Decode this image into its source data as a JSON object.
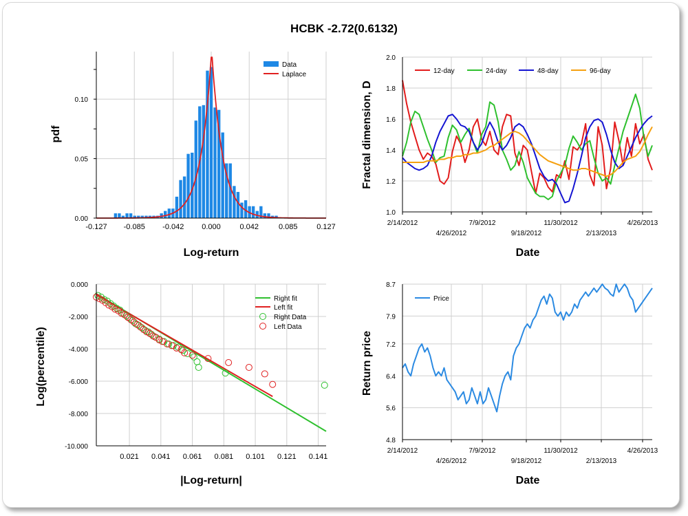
{
  "title": "HCBK -2.72(0.6132)",
  "colors": {
    "bar": "#1e88e5",
    "laplace": "#e02020",
    "d12": "#e21b1b",
    "d24": "#2ec02e",
    "d48": "#1414d2",
    "d96": "#f5a00f",
    "price": "#2b8ae2",
    "grid": "#cfcfcf",
    "rightfit": "#2ec02e",
    "leftfit": "#e02020"
  },
  "chart_data": [
    {
      "id": "hist",
      "type": "bar",
      "xlabel": "Log-return",
      "ylabel": "pdf",
      "xlim": [
        -0.127,
        0.127
      ],
      "ylim": [
        0,
        0.14
      ],
      "xticks": [
        "-0.127",
        "-0.085",
        "-0.042",
        "0.000",
        "0.042",
        "0.085",
        "0.127"
      ],
      "yticks": [
        "0.00",
        "0.05",
        "0.10"
      ],
      "legend": [
        "Data",
        "Laplace"
      ],
      "bin_width": 0.00424,
      "bins": [
        [
          -0.1058,
          0.004
        ],
        [
          -0.1016,
          0.004
        ],
        [
          -0.0974,
          0.002
        ],
        [
          -0.0931,
          0.004
        ],
        [
          -0.0889,
          0.004
        ],
        [
          -0.0846,
          0.002
        ],
        [
          -0.0804,
          0.002
        ],
        [
          -0.0762,
          0.002
        ],
        [
          -0.0719,
          0.002
        ],
        [
          -0.0677,
          0.002
        ],
        [
          -0.0635,
          0.002
        ],
        [
          -0.0592,
          0.002
        ],
        [
          -0.055,
          0.004
        ],
        [
          -0.0508,
          0.006
        ],
        [
          -0.0465,
          0.008
        ],
        [
          -0.0423,
          0.008
        ],
        [
          -0.0381,
          0.018
        ],
        [
          -0.0338,
          0.032
        ],
        [
          -0.0296,
          0.035
        ],
        [
          -0.0254,
          0.054
        ],
        [
          -0.0211,
          0.055
        ],
        [
          -0.0169,
          0.082
        ],
        [
          -0.0127,
          0.094
        ],
        [
          -0.0085,
          0.095
        ],
        [
          -0.0042,
          0.124
        ],
        [
          0.0,
          0.127
        ],
        [
          0.0042,
          0.093
        ],
        [
          0.0085,
          0.091
        ],
        [
          0.0127,
          0.072
        ],
        [
          0.0169,
          0.046
        ],
        [
          0.0211,
          0.046
        ],
        [
          0.0254,
          0.027
        ],
        [
          0.0296,
          0.022
        ],
        [
          0.0338,
          0.013
        ],
        [
          0.0381,
          0.015
        ],
        [
          0.0423,
          0.01
        ],
        [
          0.0465,
          0.01
        ],
        [
          0.0508,
          0.006
        ],
        [
          0.055,
          0.01
        ],
        [
          0.0592,
          0.004
        ],
        [
          0.0635,
          0.004
        ],
        [
          0.0677,
          0.002
        ],
        [
          0.0719,
          0.002
        ]
      ],
      "laplace": {
        "mu": 0.0005,
        "b": 0.0122,
        "peak": 0.141
      }
    },
    {
      "id": "fractal",
      "type": "line",
      "xlabel": "Date",
      "ylabel": "Fractal dimension, D",
      "ylim": [
        1.0,
        2.0
      ],
      "yticks": [
        "1.0",
        "1.2",
        "1.4",
        "1.6",
        "1.8",
        "2.0"
      ],
      "xticks_top": [
        "2/14/2012",
        "7/9/2012",
        "11/30/2012",
        "4/26/2013"
      ],
      "xticks_bottom": [
        "4/26/2012",
        "9/18/2012",
        "2/13/2013"
      ],
      "series": [
        {
          "name": "12-day",
          "values": [
            1.85,
            1.7,
            1.58,
            1.49,
            1.4,
            1.34,
            1.38,
            1.36,
            1.31,
            1.2,
            1.18,
            1.22,
            1.39,
            1.49,
            1.44,
            1.32,
            1.4,
            1.55,
            1.6,
            1.47,
            1.43,
            1.52,
            1.4,
            1.37,
            1.55,
            1.63,
            1.62,
            1.38,
            1.3,
            1.43,
            1.4,
            1.26,
            1.12,
            1.25,
            1.22,
            1.16,
            1.13,
            1.24,
            1.22,
            1.33,
            1.21,
            1.42,
            1.4,
            1.44,
            1.57,
            1.24,
            1.17,
            1.55,
            1.43,
            1.15,
            1.28,
            1.58,
            1.46,
            1.3,
            1.48,
            1.36,
            1.57,
            1.44,
            1.5,
            1.34,
            1.27
          ]
        },
        {
          "name": "24-day",
          "values": [
            1.36,
            1.45,
            1.58,
            1.65,
            1.63,
            1.55,
            1.47,
            1.4,
            1.32,
            1.35,
            1.36,
            1.48,
            1.56,
            1.53,
            1.45,
            1.5,
            1.54,
            1.45,
            1.38,
            1.5,
            1.55,
            1.71,
            1.69,
            1.58,
            1.4,
            1.34,
            1.27,
            1.3,
            1.39,
            1.32,
            1.22,
            1.17,
            1.12,
            1.1,
            1.1,
            1.08,
            1.1,
            1.2,
            1.25,
            1.3,
            1.41,
            1.49,
            1.45,
            1.4,
            1.44,
            1.46,
            1.35,
            1.25,
            1.2,
            1.22,
            1.18,
            1.3,
            1.41,
            1.52,
            1.6,
            1.68,
            1.76,
            1.67,
            1.48,
            1.36,
            1.43
          ]
        },
        {
          "name": "48-day",
          "values": [
            1.35,
            1.32,
            1.3,
            1.28,
            1.27,
            1.28,
            1.3,
            1.36,
            1.45,
            1.52,
            1.57,
            1.62,
            1.63,
            1.6,
            1.56,
            1.55,
            1.52,
            1.45,
            1.4,
            1.44,
            1.52,
            1.58,
            1.53,
            1.45,
            1.4,
            1.43,
            1.48,
            1.55,
            1.57,
            1.55,
            1.5,
            1.44,
            1.36,
            1.28,
            1.23,
            1.2,
            1.21,
            1.18,
            1.12,
            1.06,
            1.07,
            1.15,
            1.25,
            1.36,
            1.48,
            1.55,
            1.59,
            1.6,
            1.58,
            1.5,
            1.4,
            1.32,
            1.28,
            1.3,
            1.36,
            1.42,
            1.48,
            1.53,
            1.57,
            1.6,
            1.62
          ]
        },
        {
          "name": "96-day",
          "values": [
            1.32,
            1.32,
            1.32,
            1.32,
            1.32,
            1.32,
            1.33,
            1.33,
            1.33,
            1.34,
            1.34,
            1.35,
            1.35,
            1.36,
            1.36,
            1.37,
            1.37,
            1.38,
            1.38,
            1.39,
            1.4,
            1.42,
            1.43,
            1.45,
            1.47,
            1.49,
            1.51,
            1.52,
            1.51,
            1.49,
            1.46,
            1.43,
            1.4,
            1.37,
            1.35,
            1.33,
            1.32,
            1.31,
            1.3,
            1.29,
            1.28,
            1.27,
            1.27,
            1.28,
            1.28,
            1.27,
            1.26,
            1.25,
            1.24,
            1.23,
            1.24,
            1.26,
            1.29,
            1.32,
            1.34,
            1.35,
            1.36,
            1.39,
            1.44,
            1.5,
            1.55
          ]
        }
      ]
    },
    {
      "id": "tail",
      "type": "scatter",
      "xlabel": "|Log-return|",
      "ylabel": "Log(percentile)",
      "xlim": [
        0.0,
        0.146
      ],
      "ylim": [
        -10.0,
        0.0
      ],
      "xticks": [
        "0.021",
        "0.041",
        "0.061",
        "0.081",
        "0.101",
        "0.121",
        "0.141"
      ],
      "yticks": [
        "0.000",
        "-2.000",
        "-4.000",
        "-6.000",
        "-8.000",
        "-10.000"
      ],
      "legend": [
        "Right fit",
        "Left fit",
        "Right Data",
        "Left Data"
      ],
      "right_fit": [
        [
          0.0,
          -0.6
        ],
        [
          0.146,
          -9.1
        ]
      ],
      "left_fit": [
        [
          0.0,
          -0.65
        ],
        [
          0.112,
          -6.95
        ]
      ],
      "right_data": [
        [
          0.001,
          -0.7
        ],
        [
          0.003,
          -0.8
        ],
        [
          0.005,
          -0.95
        ],
        [
          0.007,
          -1.05
        ],
        [
          0.009,
          -1.2
        ],
        [
          0.011,
          -1.35
        ],
        [
          0.013,
          -1.5
        ],
        [
          0.015,
          -1.6
        ],
        [
          0.017,
          -1.8
        ],
        [
          0.019,
          -1.95
        ],
        [
          0.021,
          -2.1
        ],
        [
          0.023,
          -2.25
        ],
        [
          0.025,
          -2.45
        ],
        [
          0.027,
          -2.55
        ],
        [
          0.029,
          -2.7
        ],
        [
          0.031,
          -2.85
        ],
        [
          0.033,
          -2.95
        ],
        [
          0.035,
          -3.1
        ],
        [
          0.037,
          -3.25
        ],
        [
          0.04,
          -3.4
        ],
        [
          0.043,
          -3.55
        ],
        [
          0.046,
          -3.7
        ],
        [
          0.049,
          -3.8
        ],
        [
          0.052,
          -3.9
        ],
        [
          0.055,
          -4.1
        ],
        [
          0.058,
          -4.3
        ],
        [
          0.062,
          -4.5
        ],
        [
          0.064,
          -4.8
        ],
        [
          0.065,
          -5.15
        ],
        [
          0.082,
          -5.5
        ],
        [
          0.145,
          -6.25
        ]
      ],
      "left_data": [
        [
          0.0,
          -0.8
        ],
        [
          0.002,
          -0.9
        ],
        [
          0.004,
          -1.0
        ],
        [
          0.006,
          -1.15
        ],
        [
          0.008,
          -1.3
        ],
        [
          0.01,
          -1.4
        ],
        [
          0.012,
          -1.55
        ],
        [
          0.014,
          -1.65
        ],
        [
          0.016,
          -1.8
        ],
        [
          0.018,
          -1.9
        ],
        [
          0.02,
          -2.05
        ],
        [
          0.022,
          -2.2
        ],
        [
          0.024,
          -2.35
        ],
        [
          0.026,
          -2.5
        ],
        [
          0.028,
          -2.65
        ],
        [
          0.03,
          -2.8
        ],
        [
          0.032,
          -2.95
        ],
        [
          0.034,
          -3.05
        ],
        [
          0.036,
          -3.2
        ],
        [
          0.038,
          -3.3
        ],
        [
          0.04,
          -3.45
        ],
        [
          0.042,
          -3.55
        ],
        [
          0.045,
          -3.7
        ],
        [
          0.048,
          -3.8
        ],
        [
          0.051,
          -3.95
        ],
        [
          0.054,
          -4.05
        ],
        [
          0.056,
          -4.25
        ],
        [
          0.061,
          -4.4
        ],
        [
          0.071,
          -4.6
        ],
        [
          0.084,
          -4.85
        ],
        [
          0.097,
          -5.15
        ],
        [
          0.107,
          -5.55
        ],
        [
          0.112,
          -6.2
        ]
      ]
    },
    {
      "id": "price",
      "type": "line",
      "xlabel": "Date",
      "ylabel": "Return price",
      "ylim": [
        4.8,
        8.7
      ],
      "yticks": [
        "8.7",
        "7.9",
        "7.2",
        "6.4",
        "5.6",
        "4.8"
      ],
      "xticks_top": [
        "2/14/2012",
        "7/9/2012",
        "11/30/2012",
        "4/26/2013"
      ],
      "xticks_bottom": [
        "4/26/2012",
        "9/18/2012",
        "2/13/2013"
      ],
      "legend": [
        "Price"
      ],
      "series": [
        {
          "name": "Price",
          "values": [
            6.6,
            6.7,
            6.5,
            6.4,
            6.7,
            6.9,
            7.1,
            7.2,
            7.0,
            7.1,
            6.9,
            6.6,
            6.4,
            6.5,
            6.4,
            6.6,
            6.3,
            6.2,
            6.1,
            6.0,
            5.8,
            5.9,
            6.0,
            5.7,
            5.8,
            6.1,
            5.9,
            5.7,
            6.0,
            5.7,
            5.8,
            6.1,
            5.9,
            5.7,
            5.5,
            5.9,
            6.2,
            6.4,
            6.5,
            6.3,
            6.9,
            7.1,
            7.2,
            7.4,
            7.6,
            7.7,
            7.6,
            7.8,
            7.9,
            8.1,
            8.3,
            8.4,
            8.2,
            8.45,
            8.35,
            8.0,
            7.9,
            8.0,
            7.8,
            8.0,
            7.9,
            8.0,
            8.2,
            8.1,
            8.3,
            8.4,
            8.5,
            8.4,
            8.5,
            8.6,
            8.5,
            8.6,
            8.7,
            8.6,
            8.55,
            8.45,
            8.4,
            8.7,
            8.5,
            8.6,
            8.7,
            8.6,
            8.4,
            8.3,
            8.0,
            8.1,
            8.2,
            8.3,
            8.4,
            8.5,
            8.6
          ]
        }
      ]
    }
  ]
}
